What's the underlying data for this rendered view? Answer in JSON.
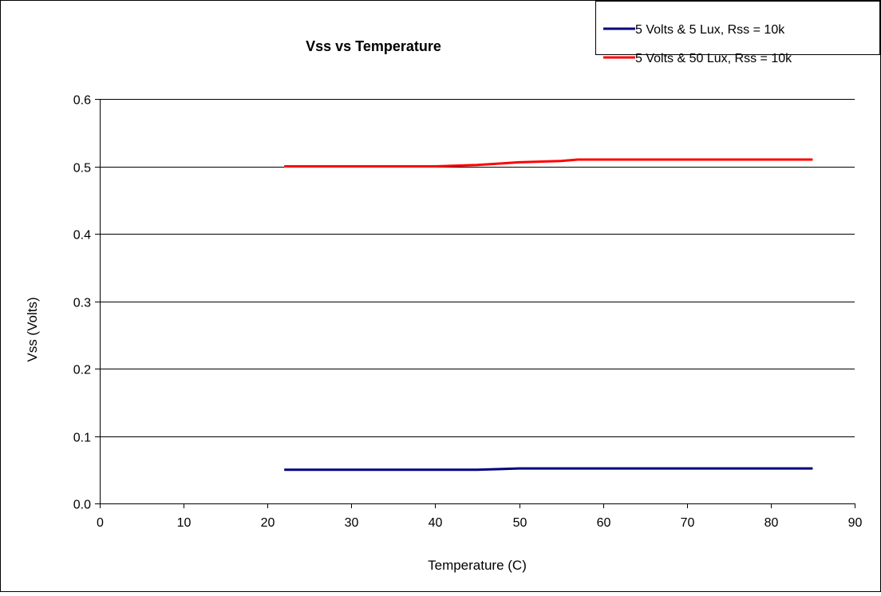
{
  "chart_data": {
    "type": "line",
    "title": "Vss vs Temperature",
    "xlabel": "Temperature (C)",
    "ylabel": "Vss (Volts)",
    "xlim": [
      0,
      90
    ],
    "ylim": [
      0,
      0.6
    ],
    "xticks": [
      0,
      10,
      20,
      30,
      40,
      50,
      60,
      70,
      80,
      90
    ],
    "yticks": [
      0.0,
      0.1,
      0.2,
      0.3,
      0.4,
      0.5,
      0.6
    ],
    "xtick_labels": [
      "0",
      "10",
      "20",
      "30",
      "40",
      "50",
      "60",
      "70",
      "80",
      "90"
    ],
    "ytick_labels": [
      "0.0",
      "0.1",
      "0.2",
      "0.3",
      "0.4",
      "0.5",
      "0.6"
    ],
    "grid": "horizontal",
    "legend_position": "top-right",
    "series": [
      {
        "name": "5 Volts & 5 Lux, Rss = 10k",
        "color": "#000080",
        "x": [
          22,
          30,
          40,
          45,
          50,
          55,
          60,
          70,
          85
        ],
        "y": [
          0.05,
          0.05,
          0.05,
          0.05,
          0.052,
          0.052,
          0.052,
          0.052,
          0.052
        ]
      },
      {
        "name": "5 Volts & 50 Lux, Rss = 10k",
        "color": "#ff0000",
        "x": [
          22,
          30,
          40,
          45,
          50,
          55,
          57,
          60,
          70,
          85
        ],
        "y": [
          0.5,
          0.5,
          0.5,
          0.502,
          0.506,
          0.508,
          0.51,
          0.51,
          0.51,
          0.51
        ]
      }
    ]
  }
}
